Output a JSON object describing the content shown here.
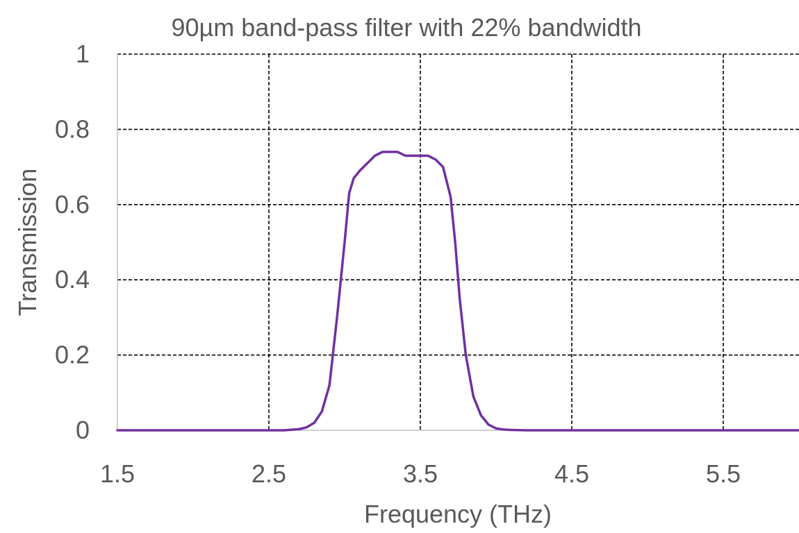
{
  "chart_data": {
    "type": "line",
    "title": "90µm band-pass filter with 22% bandwidth",
    "xlabel": "Frequency (THz)",
    "ylabel": "Transmission",
    "xlim": [
      1.5,
      6.0
    ],
    "ylim": [
      0,
      1
    ],
    "x_ticks": [
      1.5,
      2.5,
      3.5,
      4.5,
      5.5
    ],
    "x_tick_labels": [
      "1.5",
      "2.5",
      "3.5",
      "4.5",
      "5.5"
    ],
    "y_ticks": [
      0,
      0.2,
      0.4,
      0.6,
      0.8,
      1
    ],
    "y_tick_labels": [
      "0",
      "0.2",
      "0.4",
      "0.6",
      "0.8",
      "1"
    ],
    "grid": true,
    "colors": {
      "series": "#7030a0",
      "grid": "#000000",
      "axis": "#bfbfbf",
      "text": "#595959"
    },
    "series": [
      {
        "x": [
          1.5,
          1.7,
          1.9,
          2.1,
          2.3,
          2.5,
          2.6,
          2.7,
          2.75,
          2.8,
          2.85,
          2.9,
          2.95,
          3.0,
          3.03,
          3.06,
          3.1,
          3.15,
          3.2,
          3.25,
          3.3,
          3.35,
          3.4,
          3.45,
          3.5,
          3.55,
          3.6,
          3.65,
          3.7,
          3.73,
          3.76,
          3.8,
          3.85,
          3.9,
          3.95,
          4.0,
          4.05,
          4.1,
          4.2,
          4.4,
          4.6,
          4.8,
          5.0,
          5.2,
          5.4,
          5.6,
          5.8,
          6.0
        ],
        "y": [
          0.0,
          0.0,
          0.0,
          0.0,
          0.0,
          0.0,
          0.0,
          0.003,
          0.008,
          0.02,
          0.05,
          0.12,
          0.3,
          0.5,
          0.63,
          0.67,
          0.69,
          0.71,
          0.73,
          0.74,
          0.74,
          0.74,
          0.73,
          0.73,
          0.73,
          0.73,
          0.72,
          0.7,
          0.62,
          0.5,
          0.35,
          0.2,
          0.09,
          0.04,
          0.015,
          0.005,
          0.002,
          0.001,
          0.0,
          0.0,
          0.0,
          0.0,
          0.0,
          0.0,
          0.0,
          0.0,
          0.0,
          0.0
        ]
      }
    ]
  }
}
